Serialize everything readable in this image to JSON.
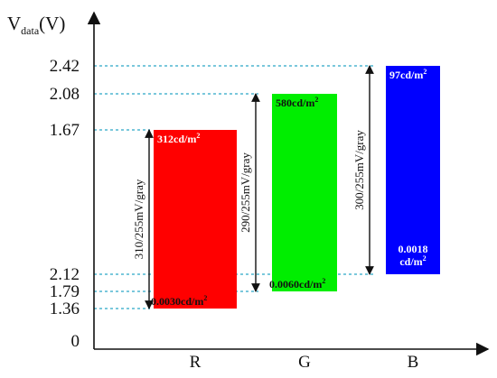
{
  "chart_data": {
    "type": "bar",
    "ylabel": {
      "main": "V",
      "sub": "data",
      "unit": "(V)"
    },
    "y_ticks": [
      {
        "label": "0",
        "level": 0
      },
      {
        "label": "1.36",
        "level": 1
      },
      {
        "label": "1.79",
        "level": 2
      },
      {
        "label": "2.12",
        "level": 3
      },
      {
        "label": "1.67",
        "level": 4
      },
      {
        "label": "2.08",
        "level": 5
      },
      {
        "label": "2.42",
        "level": 6
      }
    ],
    "categories": [
      "R",
      "G",
      "B"
    ],
    "series": [
      {
        "category": "R",
        "color": "#ff0000",
        "low_label": "1.36",
        "high_label": "1.67",
        "top_text": "312cd/m²",
        "top_text_color": "#ffffff",
        "bottom_text": "0.0030cd/m²",
        "bottom_text_color": "#111111",
        "range_text": "310/255mV/gray"
      },
      {
        "category": "G",
        "color": "#00ee00",
        "low_label": "1.79",
        "high_label": "2.08",
        "top_text": "580cd/m²",
        "top_text_color": "#111111",
        "bottom_text": "0.0060cd/m²",
        "bottom_text_color": "#111111",
        "range_text": "290/255mV/gray"
      },
      {
        "category": "B",
        "color": "#0000ff",
        "low_label": "2.12",
        "high_label": "2.42",
        "top_text": "97cd/m²",
        "top_text_color": "#ffffff",
        "bottom_text": "0.0018 cd/m²",
        "bottom_text_color": "#ffffff",
        "range_text": "300/255mV/gray"
      }
    ],
    "grid": false,
    "legend": "none"
  }
}
